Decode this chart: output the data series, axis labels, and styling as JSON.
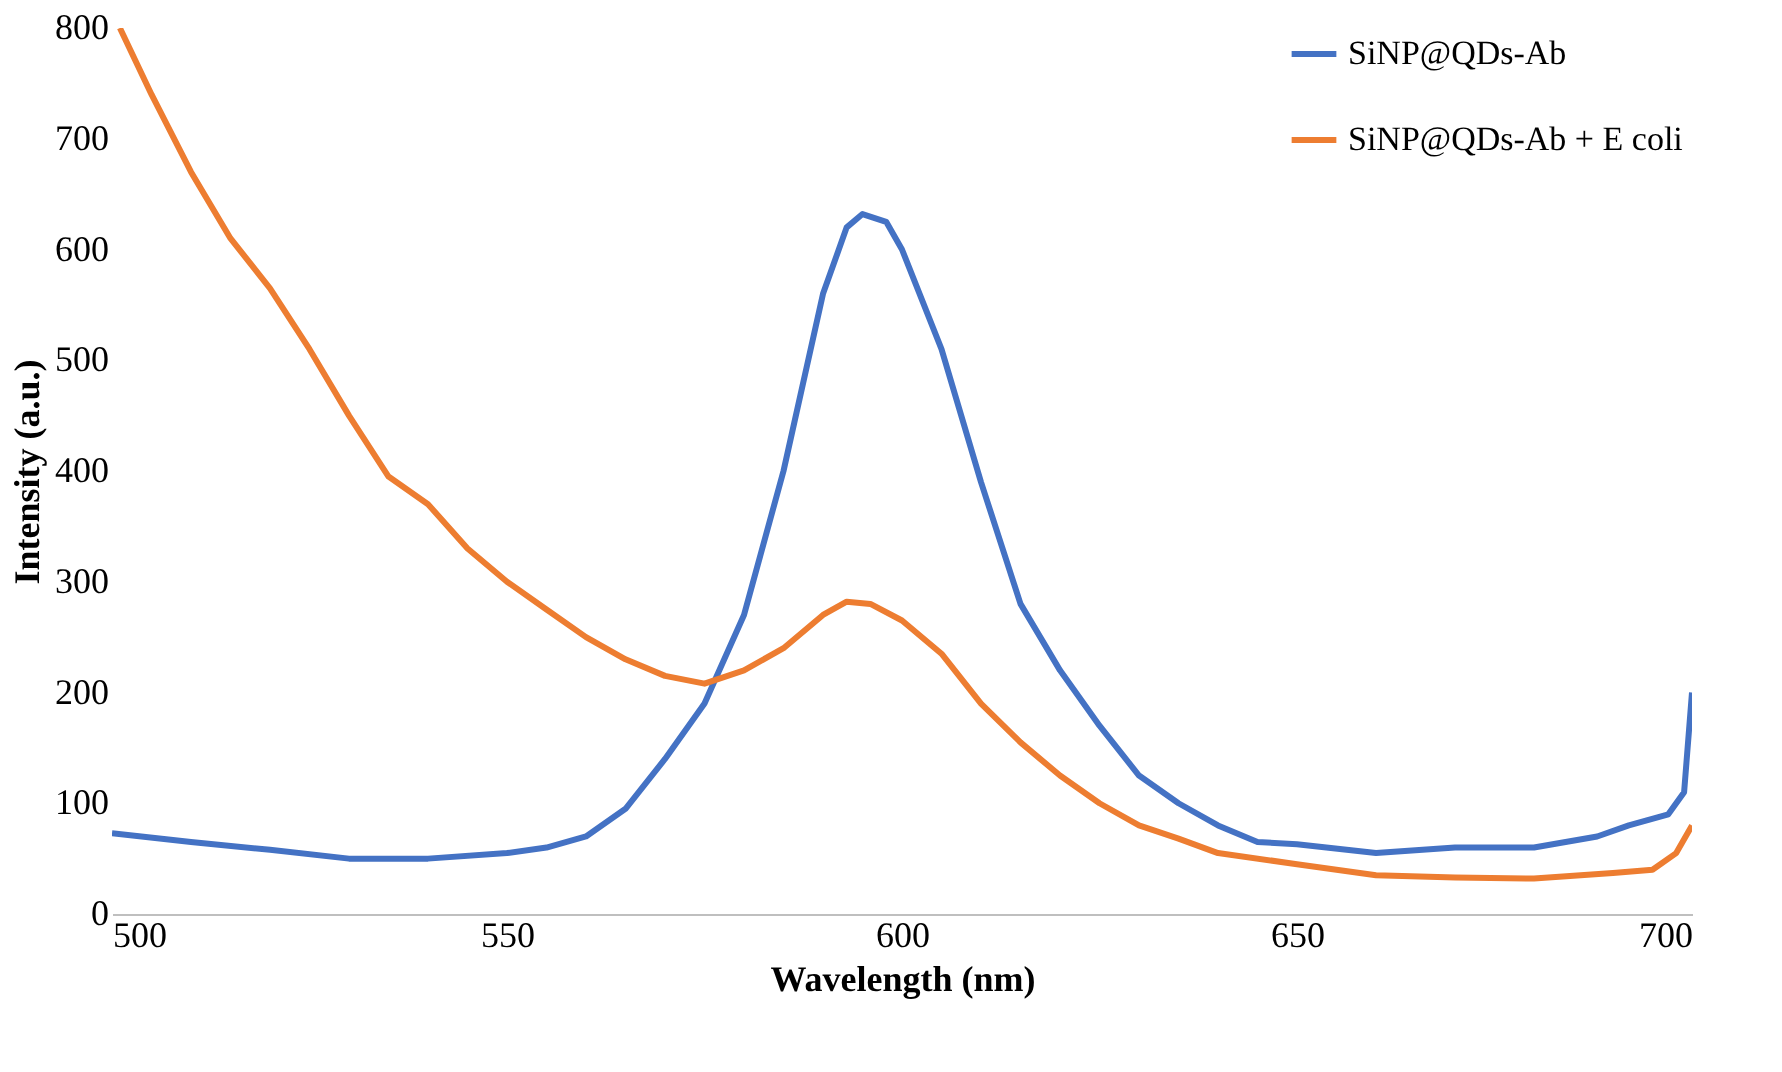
{
  "chart_data": {
    "type": "line",
    "xlabel": "Wavelength (nm)",
    "ylabel": "Intensity  (a.u.)",
    "xlim": [
      500,
      700
    ],
    "xticks": [
      500,
      550,
      600,
      650,
      700
    ],
    "ylim": [
      0,
      800
    ],
    "yticks": [
      0,
      100,
      200,
      300,
      400,
      500,
      600,
      700,
      800
    ],
    "grid": false,
    "legend": "top right",
    "marker": "none",
    "line_style": "solid",
    "series": [
      {
        "name": "SiNP@QDs-Ab",
        "color": "#4472c4",
        "x": [
          500,
          510,
          520,
          530,
          540,
          550,
          555,
          560,
          565,
          570,
          575,
          580,
          585,
          590,
          593,
          595,
          598,
          600,
          605,
          610,
          615,
          620,
          625,
          630,
          635,
          640,
          645,
          650,
          660,
          670,
          680,
          688,
          692,
          697,
          699,
          700
        ],
        "values": [
          73,
          65,
          58,
          50,
          50,
          55,
          60,
          70,
          95,
          140,
          190,
          270,
          400,
          560,
          620,
          632,
          625,
          600,
          510,
          390,
          280,
          220,
          170,
          125,
          100,
          80,
          65,
          63,
          55,
          60,
          60,
          70,
          80,
          90,
          110,
          200
        ]
      },
      {
        "name": "SiNP@QDs-Ab  + E coli",
        "color": "#ed7d31",
        "x": [
          501,
          505,
          510,
          515,
          520,
          525,
          530,
          535,
          540,
          545,
          550,
          555,
          560,
          565,
          570,
          575,
          580,
          585,
          590,
          593,
          596,
          600,
          605,
          610,
          615,
          620,
          625,
          630,
          635,
          640,
          650,
          660,
          670,
          680,
          690,
          695,
          698,
          700
        ],
        "values": [
          800,
          740,
          670,
          610,
          565,
          510,
          450,
          395,
          370,
          330,
          300,
          275,
          250,
          230,
          215,
          208,
          220,
          240,
          270,
          282,
          280,
          265,
          235,
          190,
          155,
          125,
          100,
          80,
          68,
          55,
          45,
          35,
          33,
          32,
          37,
          40,
          55,
          80
        ]
      }
    ]
  }
}
